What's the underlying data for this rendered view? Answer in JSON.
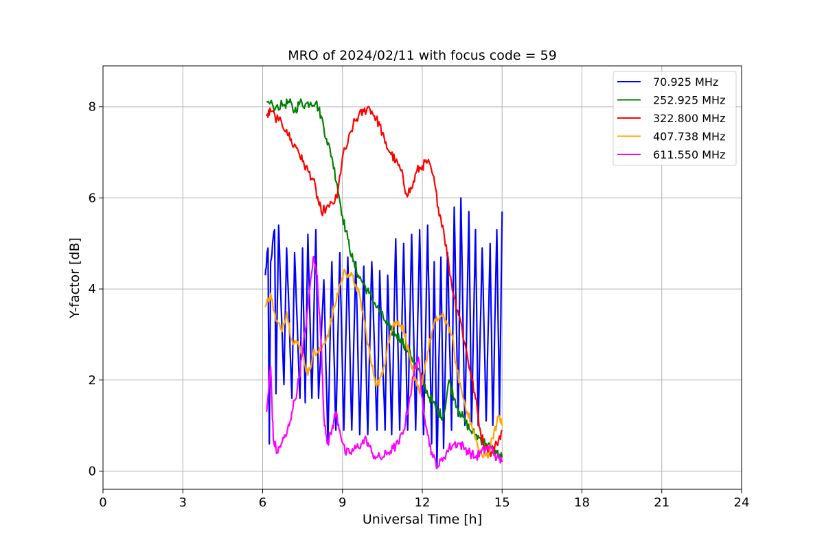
{
  "chart_data": {
    "type": "line",
    "title": "MRO of 2024/02/11 with focus code = 59",
    "xlabel": "Universal Time [h]",
    "ylabel": "Y-factor [dB]",
    "xlim": [
      0,
      24
    ],
    "ylim": [
      -0.4,
      8.9
    ],
    "xticks": [
      0,
      3,
      6,
      9,
      12,
      15,
      18,
      21,
      24
    ],
    "yticks": [
      0,
      2,
      4,
      6,
      8
    ],
    "grid": true,
    "legend_position": "top-right",
    "series": [
      {
        "name": " 70.925 MHz",
        "color": "#0000ff",
        "points": [
          [
            6.1,
            4.3
          ],
          [
            6.2,
            4.9
          ],
          [
            6.25,
            0.6
          ],
          [
            6.3,
            4.6
          ],
          [
            6.45,
            5.3
          ],
          [
            6.5,
            1.7
          ],
          [
            6.6,
            5.4
          ],
          [
            6.8,
            1.9
          ],
          [
            6.9,
            4.9
          ],
          [
            7.1,
            1.6
          ],
          [
            7.2,
            4.8
          ],
          [
            7.4,
            1.6
          ],
          [
            7.5,
            4.9
          ],
          [
            7.6,
            1.5
          ],
          [
            7.7,
            5.2
          ],
          [
            7.85,
            1.6
          ],
          [
            8.0,
            5.3
          ],
          [
            8.1,
            1.6
          ],
          [
            8.3,
            4.2
          ],
          [
            8.45,
            0.6
          ],
          [
            8.6,
            4.6
          ],
          [
            8.75,
            0.9
          ],
          [
            8.9,
            4.8
          ],
          [
            9.05,
            0.9
          ],
          [
            9.2,
            4.7
          ],
          [
            9.35,
            0.9
          ],
          [
            9.5,
            4.6
          ],
          [
            9.65,
            0.8
          ],
          [
            9.8,
            4.5
          ],
          [
            9.95,
            0.8
          ],
          [
            10.1,
            4.6
          ],
          [
            10.3,
            0.9
          ],
          [
            10.4,
            4.4
          ],
          [
            10.6,
            0.9
          ],
          [
            10.7,
            4.3
          ],
          [
            10.85,
            0.8
          ],
          [
            11.0,
            5.1
          ],
          [
            11.15,
            0.9
          ],
          [
            11.3,
            5.0
          ],
          [
            11.45,
            0.9
          ],
          [
            11.6,
            5.2
          ],
          [
            11.75,
            0.9
          ],
          [
            11.9,
            5.3
          ],
          [
            12.05,
            0.8
          ],
          [
            12.2,
            5.4
          ],
          [
            12.35,
            0.6
          ],
          [
            12.45,
            4.6
          ],
          [
            12.55,
            0.1
          ],
          [
            12.7,
            4.7
          ],
          [
            12.8,
            0.5
          ],
          [
            12.95,
            4.8
          ],
          [
            13.1,
            0.9
          ],
          [
            13.2,
            5.8
          ],
          [
            13.35,
            1.2
          ],
          [
            13.45,
            6.0
          ],
          [
            13.6,
            1.0
          ],
          [
            13.75,
            5.7
          ],
          [
            13.85,
            1.0
          ],
          [
            14.0,
            5.3
          ],
          [
            14.1,
            1.0
          ],
          [
            14.25,
            4.9
          ],
          [
            14.4,
            1.1
          ],
          [
            14.55,
            5.0
          ],
          [
            14.65,
            1.0
          ],
          [
            14.8,
            5.3
          ],
          [
            14.9,
            1.2
          ],
          [
            15.0,
            5.7
          ]
        ]
      },
      {
        "name": "252.925 MHz",
        "color": "#008000",
        "points": [
          [
            6.15,
            8.1
          ],
          [
            6.5,
            8.0
          ],
          [
            6.8,
            8.05
          ],
          [
            7.0,
            8.1
          ],
          [
            7.2,
            7.9
          ],
          [
            7.4,
            8.1
          ],
          [
            7.6,
            8.05
          ],
          [
            7.8,
            8.1
          ],
          [
            8.0,
            8.1
          ],
          [
            8.2,
            7.8
          ],
          [
            8.4,
            7.3
          ],
          [
            8.6,
            6.9
          ],
          [
            8.8,
            6.3
          ],
          [
            9.0,
            5.6
          ],
          [
            9.2,
            5.1
          ],
          [
            9.4,
            4.6
          ],
          [
            9.6,
            4.3
          ],
          [
            9.8,
            4.1
          ],
          [
            10.0,
            3.9
          ],
          [
            10.2,
            3.7
          ],
          [
            10.4,
            3.5
          ],
          [
            10.6,
            3.3
          ],
          [
            10.8,
            3.1
          ],
          [
            11.0,
            3.0
          ],
          [
            11.2,
            2.9
          ],
          [
            11.4,
            2.7
          ],
          [
            11.6,
            2.5
          ],
          [
            11.8,
            2.3
          ],
          [
            12.0,
            2.0
          ],
          [
            12.2,
            1.7
          ],
          [
            12.4,
            1.5
          ],
          [
            12.6,
            1.3
          ],
          [
            12.8,
            1.2
          ],
          [
            13.0,
            2.0
          ],
          [
            13.2,
            1.6
          ],
          [
            13.4,
            1.3
          ],
          [
            13.6,
            1.1
          ],
          [
            13.8,
            0.9
          ],
          [
            14.0,
            0.8
          ],
          [
            14.2,
            0.7
          ],
          [
            14.4,
            0.6
          ],
          [
            14.6,
            0.5
          ],
          [
            14.8,
            0.4
          ],
          [
            15.0,
            0.3
          ]
        ]
      },
      {
        "name": "322.800 MHz",
        "color": "#ff0000",
        "points": [
          [
            6.15,
            7.8
          ],
          [
            6.3,
            7.9
          ],
          [
            6.6,
            7.7
          ],
          [
            6.9,
            7.5
          ],
          [
            7.1,
            7.2
          ],
          [
            7.3,
            7.1
          ],
          [
            7.5,
            6.8
          ],
          [
            7.7,
            6.6
          ],
          [
            7.9,
            6.4
          ],
          [
            8.1,
            5.9
          ],
          [
            8.2,
            5.7
          ],
          [
            8.5,
            5.8
          ],
          [
            8.8,
            6.0
          ],
          [
            9.0,
            6.9
          ],
          [
            9.2,
            7.2
          ],
          [
            9.4,
            7.6
          ],
          [
            9.6,
            7.8
          ],
          [
            9.8,
            7.9
          ],
          [
            10.0,
            8.0
          ],
          [
            10.2,
            7.8
          ],
          [
            10.4,
            7.6
          ],
          [
            10.6,
            7.2
          ],
          [
            10.8,
            7.0
          ],
          [
            11.0,
            6.8
          ],
          [
            11.2,
            6.6
          ],
          [
            11.4,
            6.1
          ],
          [
            11.6,
            6.2
          ],
          [
            11.8,
            6.6
          ],
          [
            12.0,
            6.7
          ],
          [
            12.2,
            6.8
          ],
          [
            12.4,
            6.5
          ],
          [
            12.6,
            5.8
          ],
          [
            12.8,
            5.3
          ],
          [
            13.0,
            4.5
          ],
          [
            13.2,
            3.8
          ],
          [
            13.4,
            3.4
          ],
          [
            13.6,
            2.8
          ],
          [
            13.8,
            2.2
          ],
          [
            14.0,
            1.6
          ],
          [
            14.2,
            0.8
          ],
          [
            14.4,
            0.5
          ],
          [
            14.6,
            0.4
          ],
          [
            14.8,
            0.6
          ],
          [
            15.0,
            0.9
          ]
        ]
      },
      {
        "name": "407.738 MHz",
        "color": "#ffa500",
        "points": [
          [
            6.1,
            3.6
          ],
          [
            6.3,
            3.9
          ],
          [
            6.5,
            3.3
          ],
          [
            6.7,
            3.1
          ],
          [
            6.9,
            3.5
          ],
          [
            7.1,
            2.9
          ],
          [
            7.3,
            2.8
          ],
          [
            7.5,
            2.6
          ],
          [
            7.7,
            2.1
          ],
          [
            7.9,
            2.6
          ],
          [
            8.1,
            2.6
          ],
          [
            8.3,
            2.8
          ],
          [
            8.5,
            3.1
          ],
          [
            8.7,
            3.6
          ],
          [
            8.9,
            4.1
          ],
          [
            9.1,
            4.4
          ],
          [
            9.3,
            4.3
          ],
          [
            9.5,
            4.1
          ],
          [
            9.7,
            3.7
          ],
          [
            9.9,
            3.0
          ],
          [
            10.1,
            2.3
          ],
          [
            10.3,
            1.9
          ],
          [
            10.5,
            2.1
          ],
          [
            10.7,
            2.8
          ],
          [
            10.9,
            3.2
          ],
          [
            11.1,
            3.3
          ],
          [
            11.3,
            3.1
          ],
          [
            11.5,
            2.6
          ],
          [
            11.7,
            2.0
          ],
          [
            11.9,
            1.7
          ],
          [
            12.1,
            2.3
          ],
          [
            12.3,
            2.9
          ],
          [
            12.5,
            3.3
          ],
          [
            12.7,
            3.4
          ],
          [
            12.9,
            3.3
          ],
          [
            13.1,
            3.0
          ],
          [
            13.3,
            2.2
          ],
          [
            13.5,
            1.7
          ],
          [
            13.7,
            1.3
          ],
          [
            13.9,
            0.9
          ],
          [
            14.1,
            0.5
          ],
          [
            14.3,
            0.3
          ],
          [
            14.5,
            0.4
          ],
          [
            14.7,
            0.9
          ],
          [
            14.9,
            1.2
          ],
          [
            15.0,
            1.0
          ]
        ]
      },
      {
        "name": "611.550 MHz",
        "color": "#ff00ff",
        "points": [
          [
            6.15,
            1.3
          ],
          [
            6.3,
            2.3
          ],
          [
            6.4,
            0.7
          ],
          [
            6.55,
            0.4
          ],
          [
            6.7,
            0.6
          ],
          [
            6.9,
            0.8
          ],
          [
            7.1,
            1.3
          ],
          [
            7.3,
            1.8
          ],
          [
            7.5,
            2.6
          ],
          [
            7.7,
            3.6
          ],
          [
            7.9,
            4.7
          ],
          [
            8.05,
            4.3
          ],
          [
            8.2,
            2.8
          ],
          [
            8.3,
            1.2
          ],
          [
            8.45,
            0.6
          ],
          [
            8.6,
            0.9
          ],
          [
            8.75,
            1.3
          ],
          [
            8.9,
            0.9
          ],
          [
            9.1,
            0.4
          ],
          [
            9.3,
            0.4
          ],
          [
            9.5,
            0.5
          ],
          [
            9.7,
            0.6
          ],
          [
            9.9,
            0.7
          ],
          [
            10.1,
            0.4
          ],
          [
            10.3,
            0.3
          ],
          [
            10.5,
            0.3
          ],
          [
            10.7,
            0.4
          ],
          [
            10.9,
            0.5
          ],
          [
            11.1,
            0.6
          ],
          [
            11.3,
            0.9
          ],
          [
            11.5,
            1.5
          ],
          [
            11.7,
            2.2
          ],
          [
            11.85,
            2.5
          ],
          [
            12.0,
            1.6
          ],
          [
            12.2,
            0.8
          ],
          [
            12.4,
            0.3
          ],
          [
            12.6,
            0.1
          ],
          [
            12.8,
            0.3
          ],
          [
            13.0,
            0.5
          ],
          [
            13.2,
            0.6
          ],
          [
            13.4,
            0.6
          ],
          [
            13.6,
            0.5
          ],
          [
            13.8,
            0.4
          ],
          [
            14.0,
            0.3
          ],
          [
            14.2,
            0.4
          ],
          [
            14.4,
            0.5
          ],
          [
            14.6,
            0.5
          ],
          [
            14.8,
            0.3
          ],
          [
            15.0,
            0.2
          ]
        ]
      }
    ]
  }
}
